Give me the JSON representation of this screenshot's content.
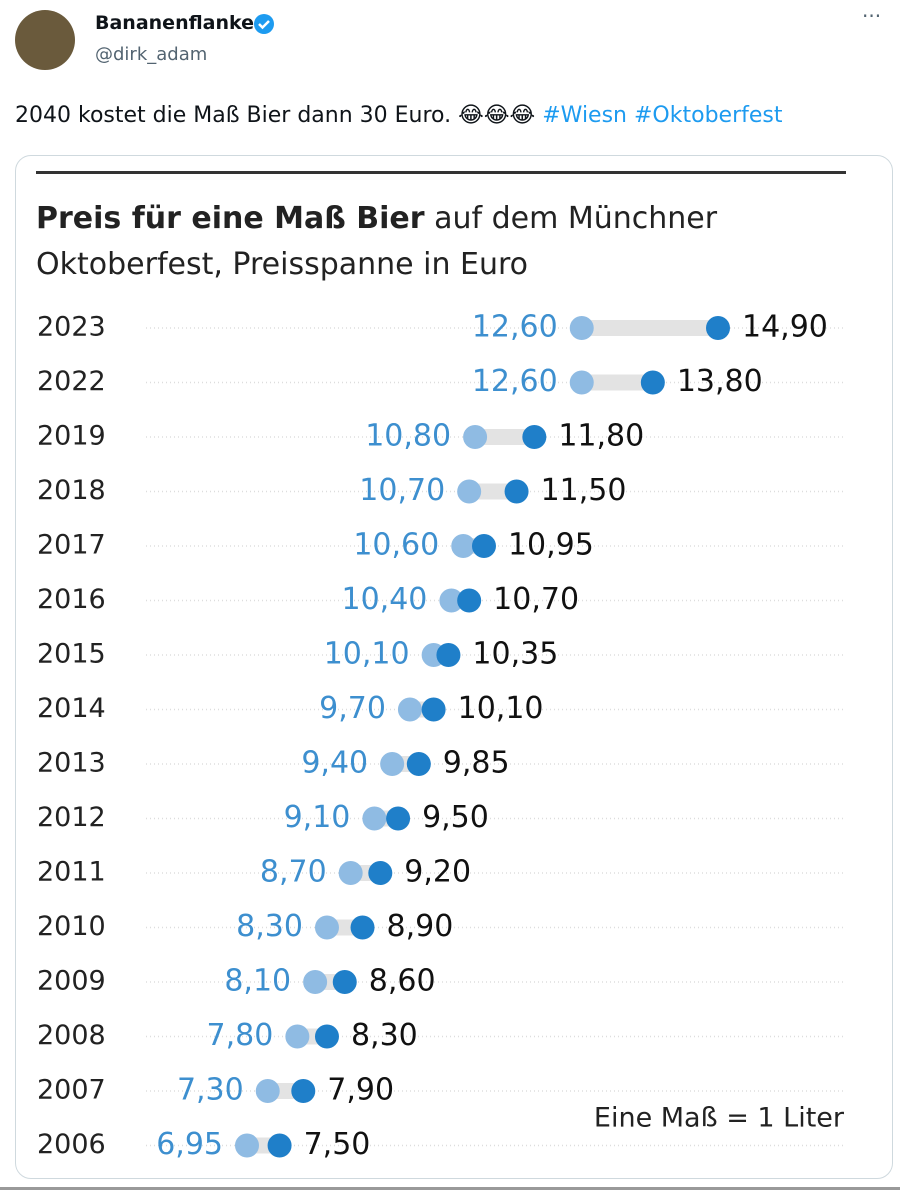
{
  "tweet": {
    "name": "Bananenflanke",
    "handle": "@dirk_adam",
    "text": "2040 kostet die Maß Bier dann 30 Euro. 😂😂😂",
    "hashtags": [
      "#Wiesn",
      "#Oktoberfest"
    ]
  },
  "chart_data": {
    "type": "dumbbell",
    "title": "Preis für eine Maß Bier",
    "subtitle": "auf dem Münchner Oktoberfest, Preisspanne in Euro",
    "note": "Eine Maß = 1 Liter",
    "categories": [
      "2023",
      "2022",
      "2019",
      "2018",
      "2017",
      "2016",
      "2015",
      "2014",
      "2013",
      "2012",
      "2011",
      "2010",
      "2009",
      "2008",
      "2007",
      "2006"
    ],
    "series": [
      {
        "color": "#8fbbe3",
        "values": [
          12.6,
          12.6,
          10.8,
          10.7,
          10.6,
          10.4,
          10.1,
          9.7,
          9.4,
          9.1,
          8.7,
          8.3,
          8.1,
          7.8,
          7.3,
          6.95
        ],
        "value_labels": [
          "12,60",
          "12,60",
          "10,80",
          "10,70",
          "10,60",
          "10,40",
          "10,10",
          "9,70",
          "9,40",
          "9,10",
          "8,70",
          "8,30",
          "8,10",
          "7,80",
          "7,30",
          "6,95"
        ]
      },
      {
        "color": "#1f7fc9",
        "values": [
          14.9,
          13.8,
          11.8,
          11.5,
          10.95,
          10.7,
          10.35,
          10.1,
          9.85,
          9.5,
          9.2,
          8.9,
          8.6,
          8.3,
          7.9,
          7.5
        ],
        "value_labels": [
          "14,90",
          "13,80",
          "11,80",
          "11,50",
          "10,95",
          "10,70",
          "10,35",
          "10,10",
          "9,85",
          "9,50",
          "9,20",
          "8,90",
          "8,60",
          "8,30",
          "7,90",
          "7,50"
        ]
      }
    ]
  }
}
